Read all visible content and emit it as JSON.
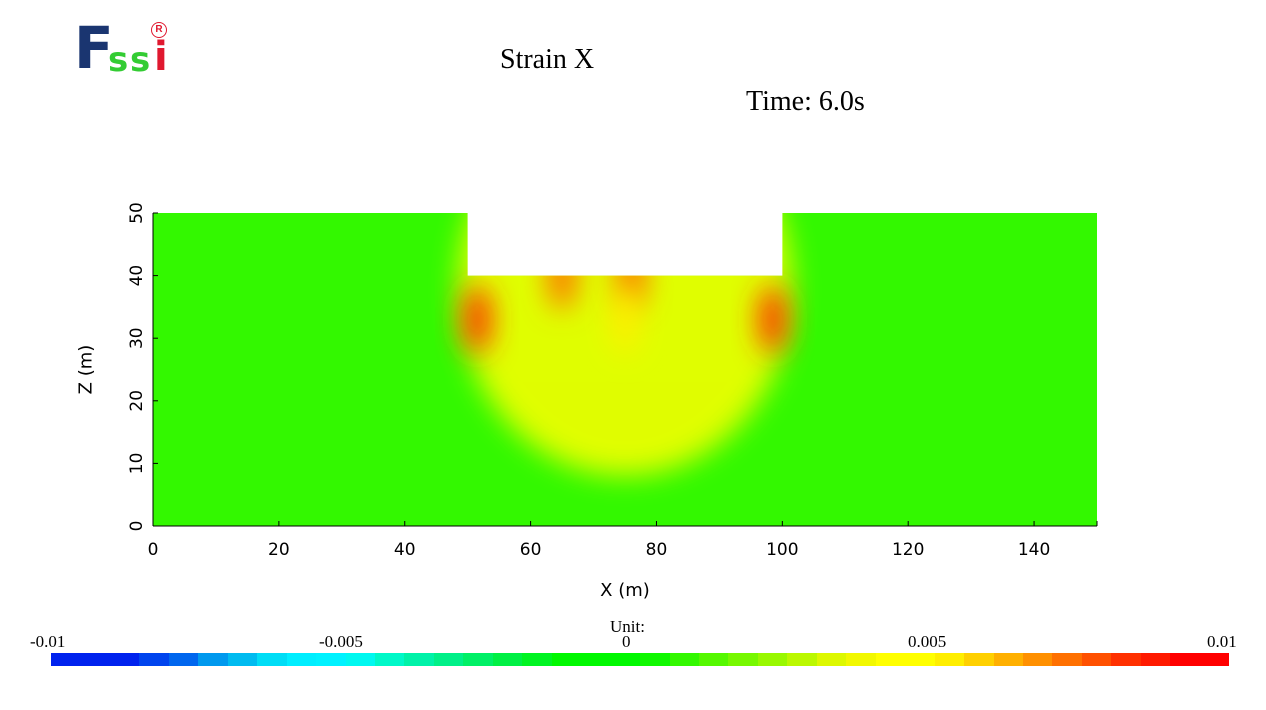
{
  "logo": {
    "letters": [
      "F",
      "s",
      "s",
      "i"
    ],
    "registered_mark": "R"
  },
  "title": "Strain X",
  "time_label": "Time: 6.0s",
  "chart_data": {
    "type": "heatmap",
    "variable": "Strain X",
    "xlabel": "X (m)",
    "ylabel": "Z (m)",
    "xlim": [
      0,
      150
    ],
    "ylim": [
      0,
      50
    ],
    "xticks": [
      0,
      20,
      40,
      60,
      80,
      100,
      120,
      140
    ],
    "yticks": [
      0,
      10,
      20,
      30,
      40,
      50
    ],
    "domain_outline": [
      [
        0,
        0
      ],
      [
        150,
        0
      ],
      [
        150,
        50
      ],
      [
        100,
        50
      ],
      [
        100,
        40
      ],
      [
        50,
        40
      ],
      [
        50,
        50
      ],
      [
        0,
        50
      ]
    ],
    "field": {
      "background_value": 0.001,
      "hotspots": [
        {
          "x": 51.5,
          "z": 33,
          "value": 0.008
        },
        {
          "x": 98.5,
          "z": 33,
          "value": 0.008
        },
        {
          "x": 65,
          "z": 40,
          "value": 0.007
        },
        {
          "x": 76,
          "z": 40,
          "value": 0.007
        },
        {
          "x": 75,
          "z": 33,
          "value": 0.005
        }
      ]
    },
    "colorbar": {
      "unit_label": "Unit:",
      "range": [
        -0.01,
        0.01
      ],
      "tick_labels": [
        "-0.01",
        "-0.005",
        "0",
        "0.005",
        "0.01"
      ],
      "colors": [
        "#0022ee",
        "#0022ee",
        "#0022ee",
        "#0044ee",
        "#0066ee",
        "#0099ee",
        "#00bbf0",
        "#00ddf6",
        "#00eeff",
        "#00f2ff",
        "#00f8f0",
        "#00f8c8",
        "#00f2a8",
        "#00f088",
        "#00f066",
        "#00f044",
        "#00f422",
        "#00f800",
        "#00f800",
        "#00f800",
        "#10f800",
        "#33f800",
        "#55f800",
        "#77f800",
        "#99f800",
        "#bbf800",
        "#ddf800",
        "#f2f800",
        "#ffff00",
        "#ffff00",
        "#ffee00",
        "#ffd000",
        "#ffb000",
        "#ff9000",
        "#ff7000",
        "#ff5000",
        "#ff3000",
        "#ff1a00",
        "#ff0000",
        "#ff0000"
      ]
    }
  }
}
